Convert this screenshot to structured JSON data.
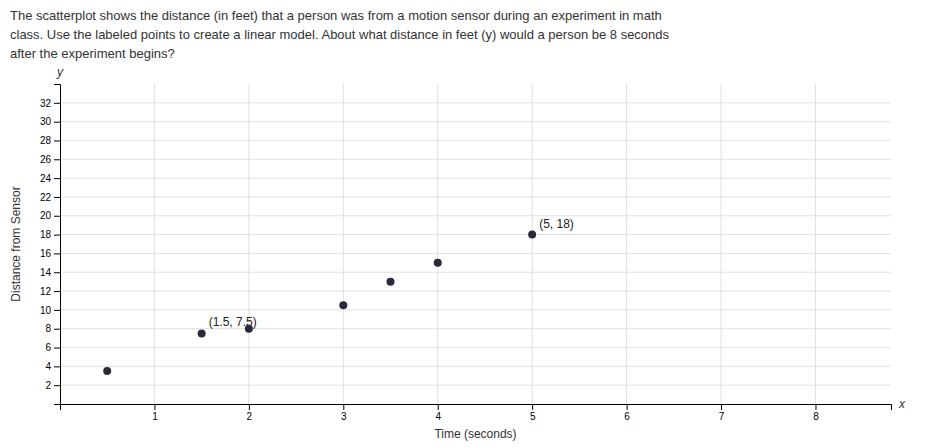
{
  "chart_data": {
    "type": "scatter",
    "title": [
      "The scatterplot shows the distance (in feet) that a person was from a motion sensor during an experiment in math",
      "class. Use the labeled points to create a linear model. About what distance in feet (y) would a person be 8 seconds",
      "after the experiment begins?"
    ],
    "x": [
      0.5,
      1.5,
      2.0,
      3.0,
      3.5,
      4.0,
      5.0
    ],
    "values": [
      3.5,
      7.5,
      8.0,
      10.5,
      13.0,
      15.0,
      18.0
    ],
    "color": "#2a2a3a",
    "annotations": [
      {
        "text": "(1.5, 7.5)",
        "x": 1.5,
        "y": 7.5
      },
      {
        "text": "(5, 18)",
        "x": 5.0,
        "y": 18.0
      }
    ],
    "xlim": [
      0,
      8.8
    ],
    "ylim": [
      0,
      34
    ],
    "xticks": [
      1,
      2,
      3,
      4,
      5,
      6,
      7,
      8
    ],
    "yticks": [
      2,
      4,
      6,
      8,
      10,
      12,
      14,
      16,
      18,
      20,
      22,
      24,
      26,
      28,
      30,
      32
    ],
    "xlabel": "Time (seconds)",
    "ylabel": "Distance from Sensor",
    "x_axis_name": "x",
    "y_axis_name": "y",
    "grid": true
  }
}
